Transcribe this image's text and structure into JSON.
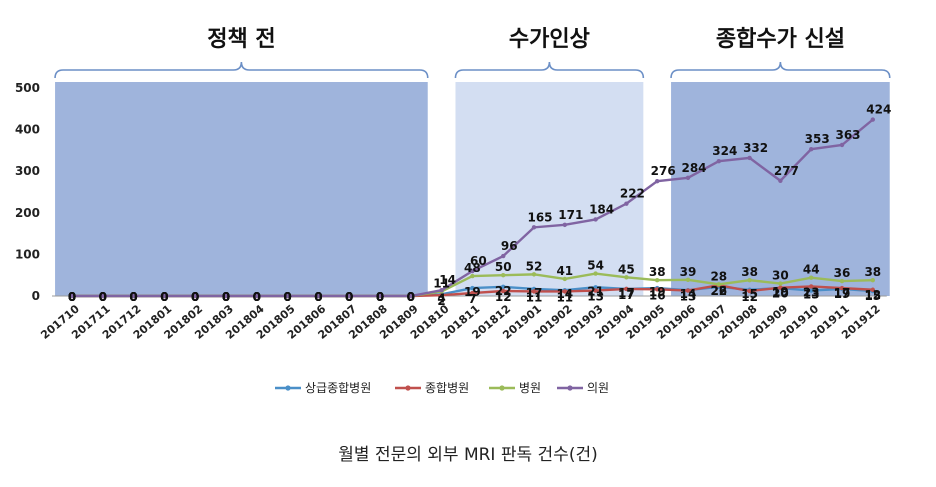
{
  "chart_data": {
    "type": "line",
    "title": "",
    "xlabel": "",
    "ylabel": "",
    "ylim": [
      0,
      500
    ],
    "yticks": [
      0,
      100,
      200,
      300,
      400,
      500
    ],
    "grid": false,
    "legend_position": "bottom",
    "categories": [
      "201710",
      "201711",
      "201712",
      "201801",
      "201802",
      "201803",
      "201804",
      "201805",
      "201806",
      "201807",
      "201808",
      "201809",
      "201810",
      "201811",
      "201812",
      "201901",
      "201902",
      "201903",
      "201904",
      "201905",
      "201906",
      "201907",
      "201908",
      "201909",
      "201910",
      "201911",
      "201912"
    ],
    "series": [
      {
        "name": "상급종합병원",
        "color": "#4a8fc8",
        "values": [
          0,
          0,
          0,
          0,
          0,
          0,
          0,
          0,
          0,
          0,
          0,
          0,
          4,
          19,
          22,
          17,
          14,
          21,
          17,
          19,
          14,
          22,
          15,
          19,
          13,
          17,
          12
        ],
        "labels": [
          "0",
          "0",
          "0",
          "0",
          "0",
          "0",
          "0",
          "0",
          "0",
          "0",
          "0",
          "0",
          "4",
          "19",
          "22",
          "17",
          "14",
          "21",
          "17",
          "19",
          "14",
          "22",
          "15",
          "19",
          "13",
          "17",
          "12"
        ]
      },
      {
        "name": "종합병원",
        "color": "#c0504d",
        "values": [
          0,
          0,
          0,
          0,
          0,
          0,
          0,
          0,
          0,
          0,
          0,
          0,
          2,
          7,
          12,
          11,
          11,
          13,
          17,
          16,
          13,
          26,
          12,
          20,
          23,
          19,
          15
        ],
        "labels": [
          "0",
          "0",
          "0",
          "0",
          "0",
          "0",
          "0",
          "0",
          "0",
          "0",
          "0",
          "0",
          "2",
          "7",
          "12",
          "11",
          "11",
          "13",
          "17",
          "16",
          "13",
          "26",
          "12",
          "20",
          "23",
          "19",
          "15"
        ]
      },
      {
        "name": "병원",
        "color": "#9bbb59",
        "values": [
          0,
          0,
          0,
          0,
          0,
          0,
          0,
          0,
          0,
          0,
          0,
          0,
          11,
          48,
          50,
          52,
          41,
          54,
          45,
          38,
          39,
          28,
          38,
          30,
          44,
          36,
          38
        ],
        "labels": [
          "0",
          "0",
          "0",
          "0",
          "0",
          "0",
          "0",
          "0",
          "0",
          "0",
          "0",
          "0",
          "11",
          "48",
          "50",
          "52",
          "41",
          "54",
          "45",
          "38",
          "39",
          "28",
          "38",
          "30",
          "44",
          "36",
          "38"
        ]
      },
      {
        "name": "의원",
        "color": "#8064a2",
        "values": [
          0,
          0,
          0,
          0,
          0,
          0,
          0,
          0,
          0,
          0,
          0,
          0,
          14,
          60,
          96,
          165,
          171,
          184,
          222,
          276,
          284,
          324,
          332,
          277,
          353,
          363,
          424
        ],
        "labels": [
          "0",
          "0",
          "0",
          "0",
          "0",
          "0",
          "0",
          "0",
          "0",
          "0",
          "0",
          "0",
          "14",
          "60",
          "96",
          "165",
          "171",
          "184",
          "222",
          "276",
          "284",
          "324",
          "332",
          "277",
          "353",
          "363",
          "424"
        ]
      }
    ],
    "periods": [
      {
        "label": "정책 전",
        "start": "201710",
        "end": "201809",
        "color": "#9fb4dc"
      },
      {
        "label": "수가인상",
        "start": "201811",
        "end": "201904",
        "color": "#d3def2"
      },
      {
        "label": "종합수가 신설",
        "start": "201906",
        "end": "201912",
        "color": "#9fb4dc"
      }
    ],
    "caption": "월별 전문의 외부 MRI 판독 건수(건)"
  }
}
